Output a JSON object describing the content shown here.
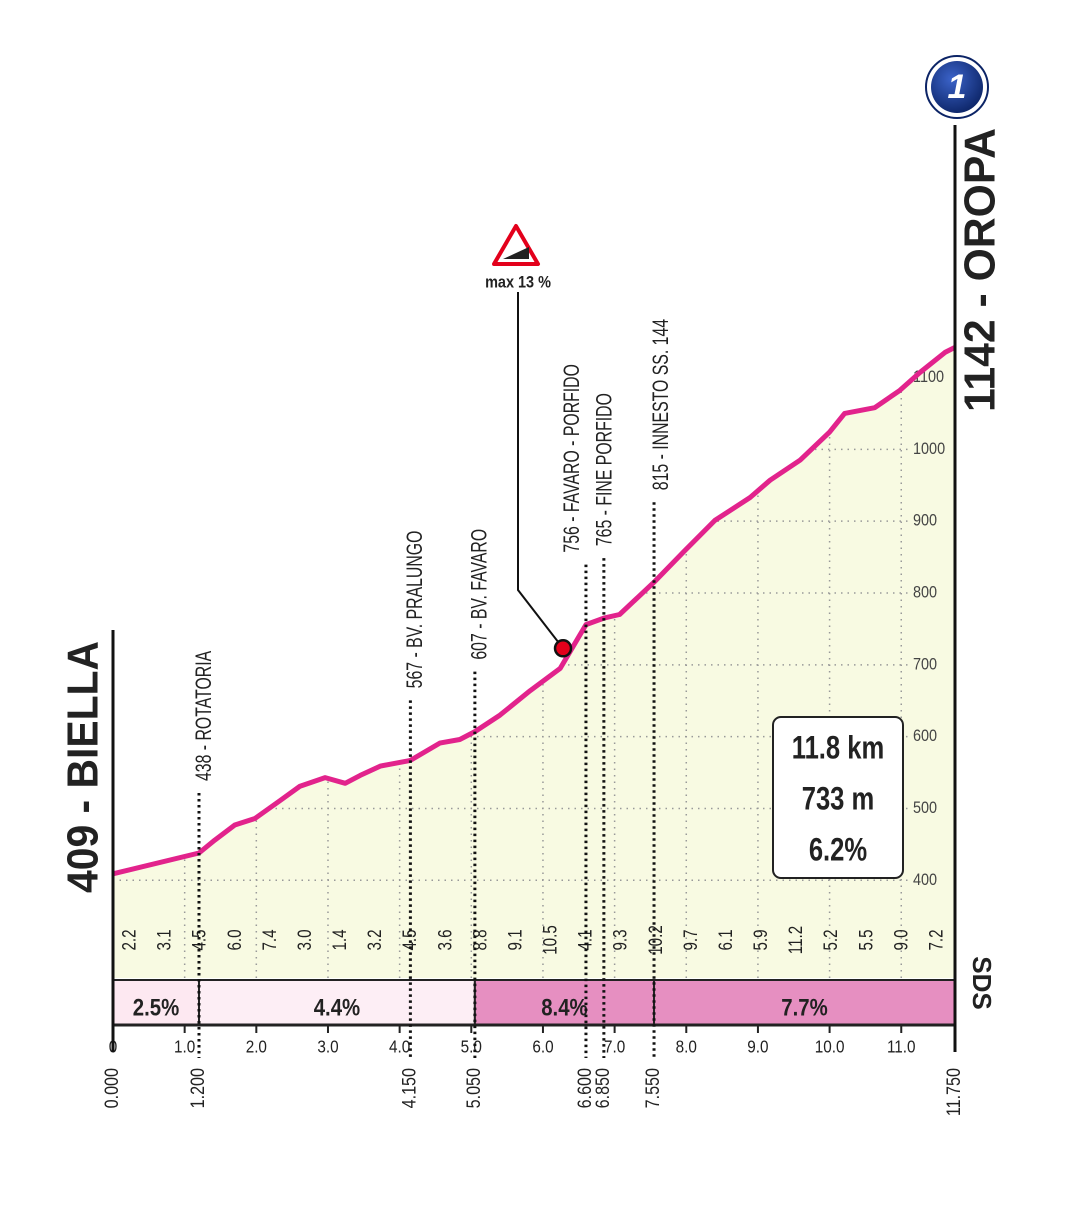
{
  "chart_data": {
    "type": "area",
    "color": "#e2238c",
    "fill": "#f8fae2",
    "x": [
      0,
      1.2,
      1.42,
      1.7,
      1.98,
      2.33,
      2.61,
      2.96,
      3.24,
      3.45,
      3.73,
      4.15,
      4.56,
      4.84,
      5.05,
      5.4,
      5.82,
      6.24,
      6.6,
      6.85,
      7.07,
      7.55,
      7.98,
      8.4,
      8.89,
      9.17,
      9.59,
      10.0,
      10.21,
      10.63,
      10.98,
      11.26,
      11.61,
      11.75
    ],
    "values": [
      409,
      438,
      456,
      477,
      486,
      511,
      531,
      543,
      535,
      546,
      559,
      567,
      591,
      596,
      607,
      630,
      664,
      695,
      756,
      765,
      770,
      815,
      859,
      901,
      933,
      957,
      985,
      1024,
      1050,
      1058,
      1082,
      1107,
      1135,
      1142
    ],
    "xlim": [
      0,
      11.75
    ],
    "ylim": [
      264,
      1400
    ],
    "xticks": [
      0,
      {
        "value": 1,
        "label": "1.0"
      },
      {
        "value": 2,
        "label": "2.0"
      },
      {
        "value": 3,
        "label": "3.0"
      },
      {
        "value": 4,
        "label": "4.0"
      },
      {
        "value": 5,
        "label": "5.0"
      },
      {
        "value": 6,
        "label": "6.0"
      },
      {
        "value": 7,
        "label": "7.0"
      },
      {
        "value": 8,
        "label": "8.0"
      },
      {
        "value": 9,
        "label": "9.0"
      },
      {
        "value": 10,
        "label": "10.0"
      },
      {
        "value": 11,
        "label": "11.0"
      }
    ],
    "yticks": [
      400,
      500,
      600,
      700,
      800,
      900,
      1000,
      1100
    ],
    "grid": true,
    "start": {
      "name": "409 - BIELLA",
      "value": 0,
      "label": "0.000"
    },
    "end": {
      "name": "1142 - OROPA",
      "value": 11.75,
      "label": "11.750"
    },
    "waypoints": [
      {
        "name": "438 - ROTATORIA",
        "value": 1.2,
        "label": "1.200"
      },
      {
        "name": "567 - BV. PRALUNGO",
        "value": 4.15,
        "label": "4.150"
      },
      {
        "name": "607 - BV. FAVARO",
        "value": 5.05,
        "label": "5.050"
      },
      {
        "name": "756 - FAVARO - PORFIDO",
        "value": 6.6,
        "label": "6.600"
      },
      {
        "name": "765 - FINE PORFIDO",
        "value": 6.85,
        "label": "6.850"
      },
      {
        "name": "815 - INNESTO SS. 144",
        "value": 7.55,
        "label": "7.550"
      }
    ],
    "half_km_gradients": [
      "2.2",
      "3.1",
      "4.5",
      "6.0",
      "7.4",
      "3.0",
      "1.4",
      "3.2",
      "4.5",
      "3.6",
      "8.8",
      "9.1",
      "10.5",
      "4.1",
      "9.3",
      "10.2",
      "9.7",
      "6.1",
      "5.9",
      "11.2",
      "5.2",
      "5.5",
      "9.0",
      "7.2"
    ],
    "segments": [
      {
        "start": 0,
        "end": 1.2,
        "label": "2.5%",
        "color": "#fde8f1"
      },
      {
        "start": 1.2,
        "end": 5.05,
        "label": "4.4%",
        "color": "#fdeef5"
      },
      {
        "start": 5.05,
        "end": 7.55,
        "label": "8.4%",
        "color": "#e68fc1"
      },
      {
        "start": 7.55,
        "end": 11.75,
        "label": "7.7%",
        "color": "#e68fc1"
      }
    ],
    "max_gradient": {
      "label": "max 13 %",
      "x": 6.28,
      "y": 723
    },
    "summary": [
      "11.8 km",
      "733 m",
      "6.2%"
    ],
    "badge": "1",
    "logo": "SDS"
  }
}
